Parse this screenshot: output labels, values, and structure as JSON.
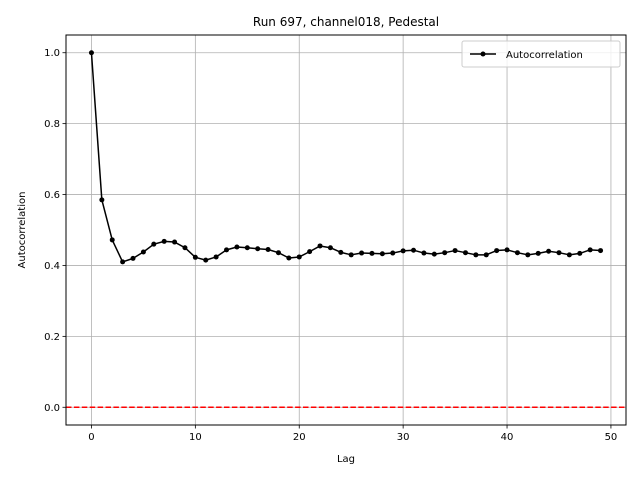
{
  "chart_data": {
    "type": "line",
    "title": "Run 697, channel018, Pedestal",
    "xlabel": "Lag",
    "ylabel": "Autocorrelation",
    "xlim": [
      -2.45,
      51.45
    ],
    "ylim": [
      -0.05,
      1.05
    ],
    "xticks": [
      0,
      10,
      20,
      30,
      40,
      50
    ],
    "yticks": [
      0.0,
      0.2,
      0.4,
      0.6,
      0.8,
      1.0
    ],
    "xtick_labels": [
      "0",
      "10",
      "20",
      "30",
      "40",
      "50"
    ],
    "ytick_labels": [
      "0.0",
      "0.2",
      "0.4",
      "0.6",
      "0.8",
      "1.0"
    ],
    "grid": true,
    "legend_position": "top-right",
    "series": [
      {
        "name": "Autocorrelation",
        "color": "#000000",
        "marker": "circle",
        "x": [
          0,
          1,
          2,
          3,
          4,
          5,
          6,
          7,
          8,
          9,
          10,
          11,
          12,
          13,
          14,
          15,
          16,
          17,
          18,
          19,
          20,
          21,
          22,
          23,
          24,
          25,
          26,
          27,
          28,
          29,
          30,
          31,
          32,
          33,
          34,
          35,
          36,
          37,
          38,
          39,
          40,
          41,
          42,
          43,
          44,
          45,
          46,
          47,
          48,
          49
        ],
        "y": [
          1.0,
          0.585,
          0.472,
          0.41,
          0.42,
          0.438,
          0.46,
          0.468,
          0.466,
          0.45,
          0.423,
          0.415,
          0.424,
          0.444,
          0.452,
          0.45,
          0.447,
          0.445,
          0.436,
          0.421,
          0.424,
          0.439,
          0.455,
          0.45,
          0.437,
          0.43,
          0.435,
          0.434,
          0.433,
          0.435,
          0.441,
          0.443,
          0.435,
          0.432,
          0.436,
          0.442,
          0.436,
          0.43,
          0.43,
          0.442,
          0.444,
          0.436,
          0.43,
          0.434,
          0.44,
          0.436,
          0.43,
          0.434,
          0.444,
          0.442
        ]
      }
    ],
    "reference_line": {
      "y": 0.0,
      "color": "#ff0000",
      "style": "dashed"
    }
  }
}
